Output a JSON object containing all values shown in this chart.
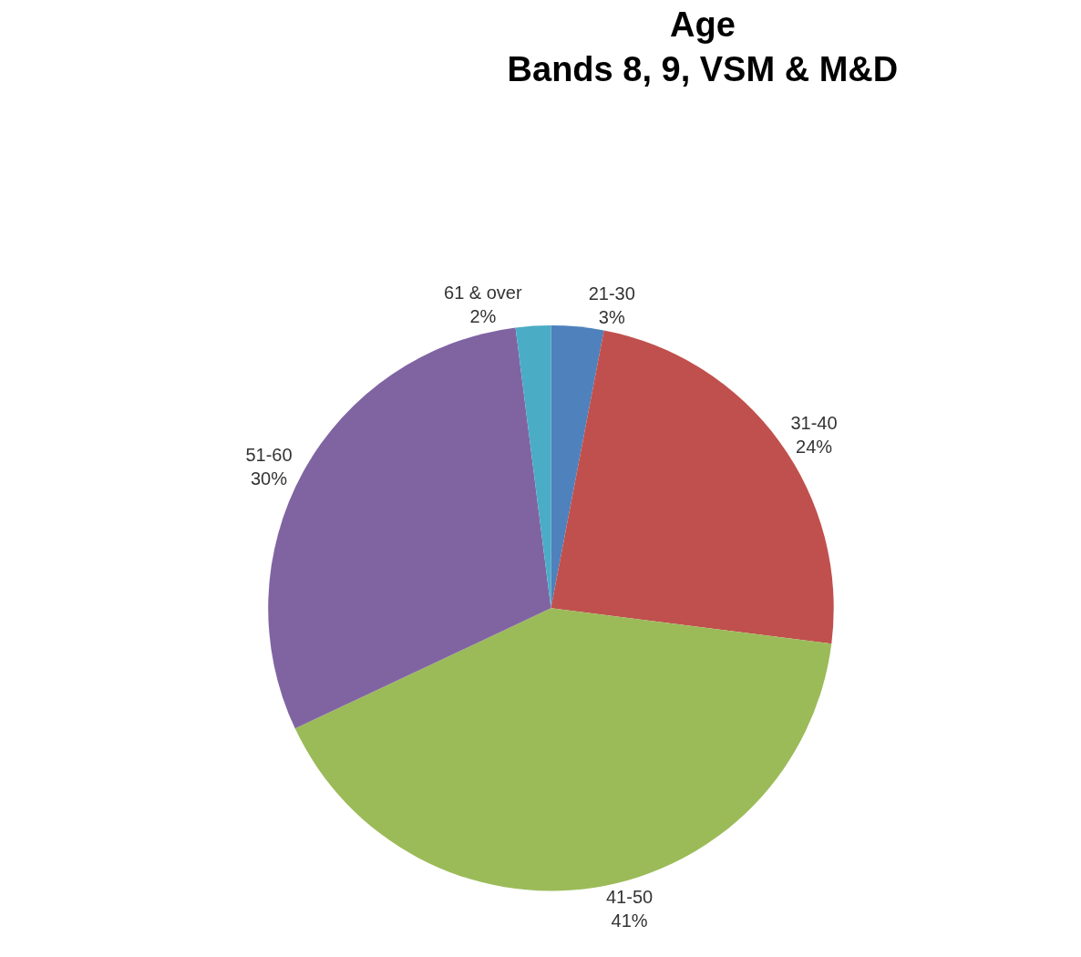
{
  "chart_data": {
    "type": "pie",
    "title": "Age\nBands 8, 9, VSM & M&D",
    "categories": [
      "21-30",
      "31-40",
      "41-50",
      "51-60",
      "61 & over"
    ],
    "values": [
      3,
      24,
      41,
      30,
      2
    ],
    "value_labels": [
      "3%",
      "24%",
      "41%",
      "30%",
      "2%"
    ],
    "colors": [
      "#4f81bd",
      "#c0504d",
      "#9bbb59",
      "#8064a2",
      "#4bacc6"
    ],
    "legend": false
  }
}
